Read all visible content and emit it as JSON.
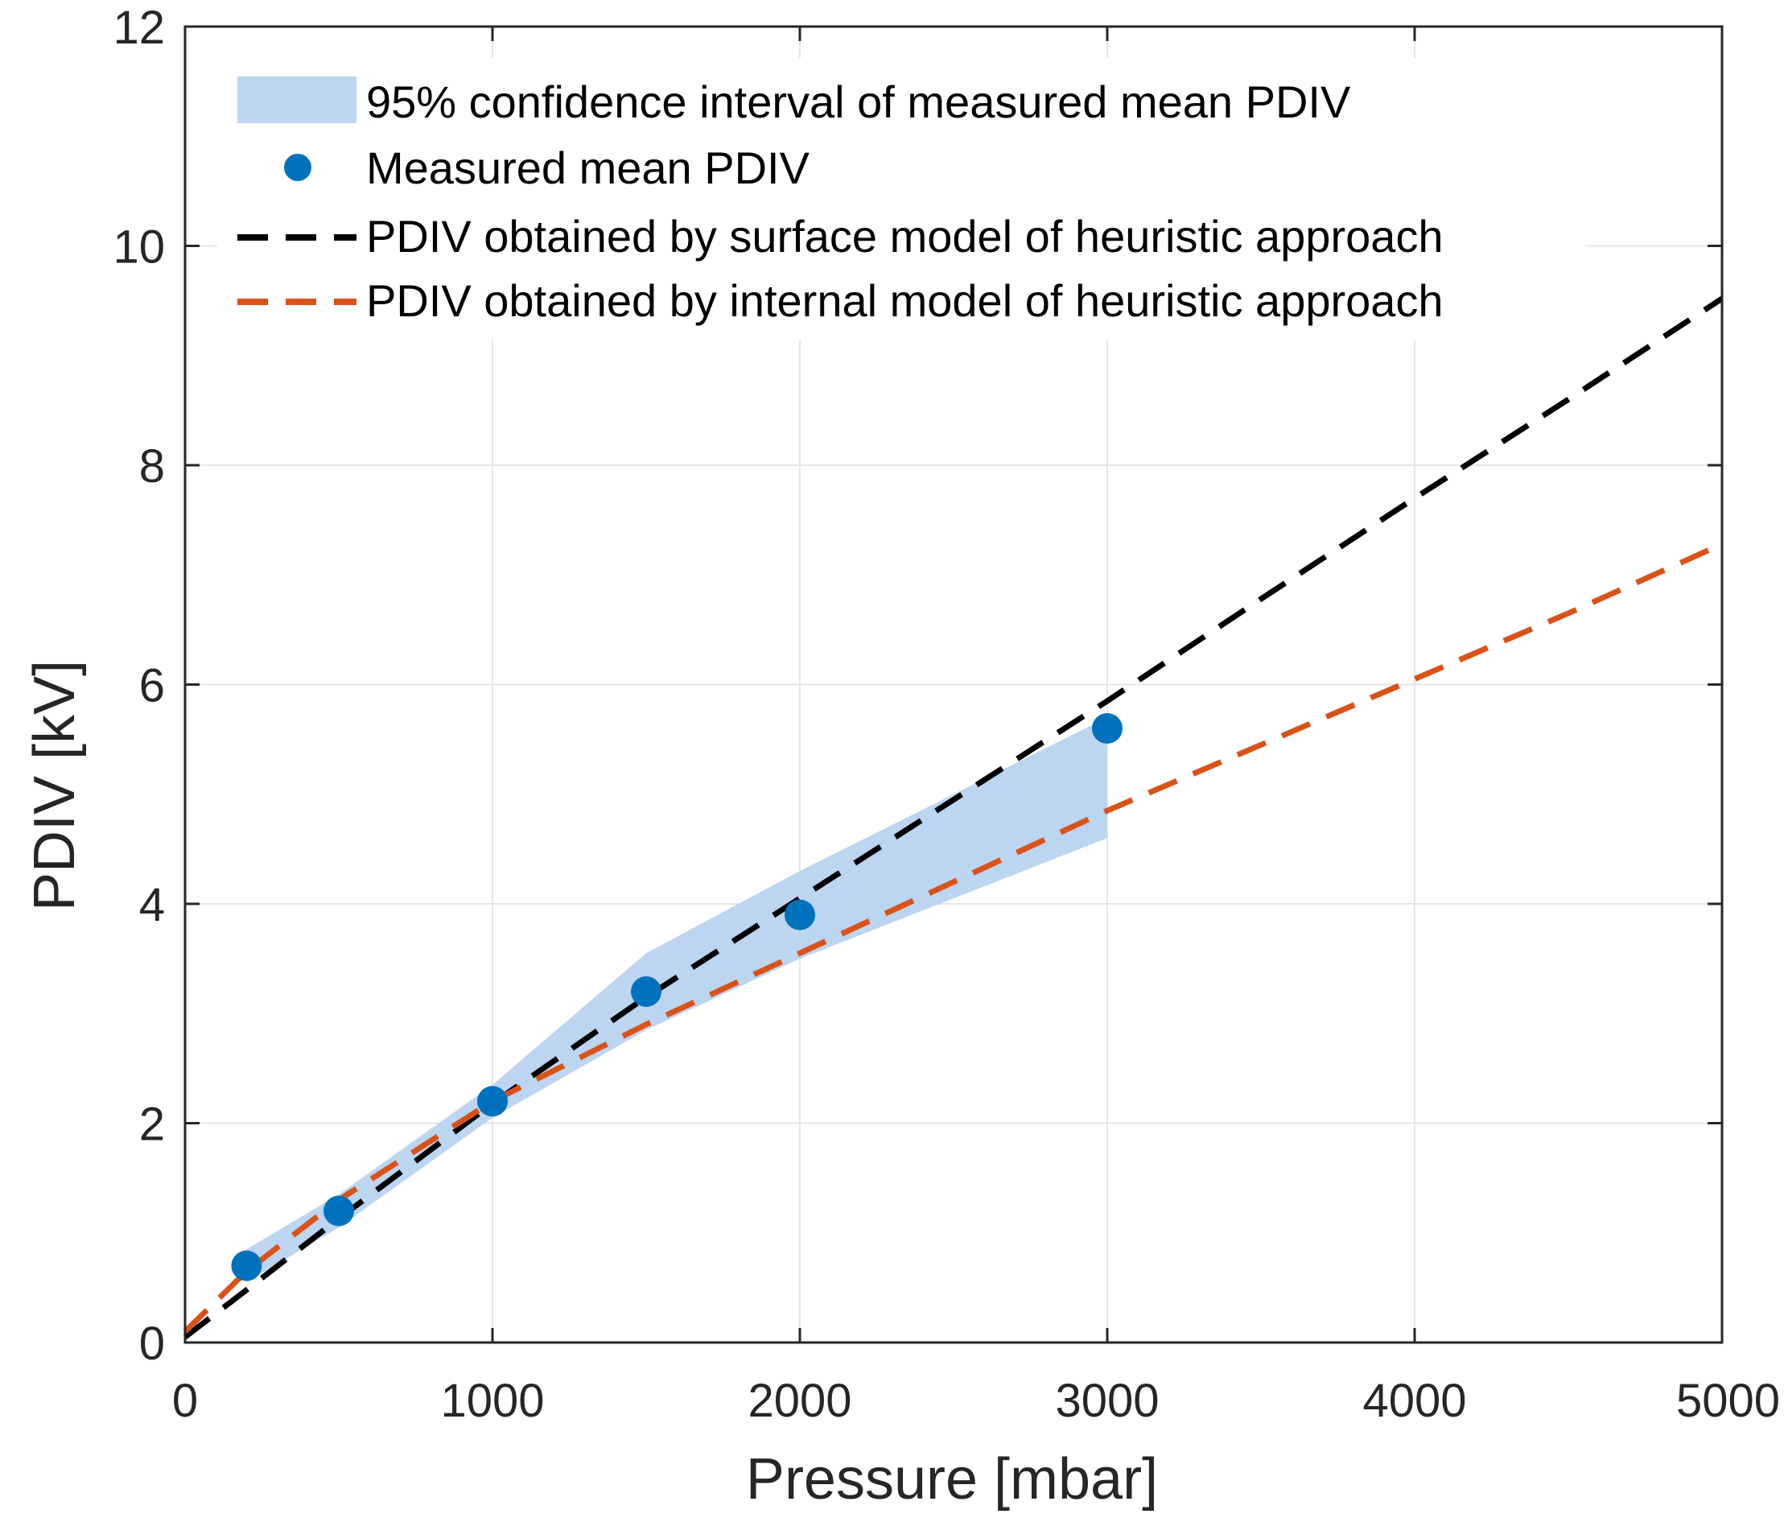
{
  "chart_data": {
    "type": "line",
    "title": "",
    "xlabel": "Pressure [mbar]",
    "ylabel": "PDIV [kV]",
    "xlim": [
      0,
      5000
    ],
    "ylim": [
      0,
      12
    ],
    "x_ticks": [
      0,
      1000,
      2000,
      3000,
      4000,
      5000
    ],
    "y_ticks": [
      0,
      2,
      4,
      6,
      8,
      10,
      12
    ],
    "grid": true,
    "legend_position": "top-left",
    "confidence_band": {
      "name": "95% confidence interval of measured mean PDIV",
      "color": "#bcd5f1",
      "x": [
        200,
        500,
        1000,
        1500,
        2000,
        3000
      ],
      "lower": [
        0.55,
        1.05,
        2.05,
        2.85,
        3.5,
        4.6
      ],
      "upper": [
        0.85,
        1.35,
        2.35,
        3.55,
        4.3,
        5.7
      ]
    },
    "series": [
      {
        "name": "Measured mean PDIV",
        "style": "markers",
        "color": "#0072bd",
        "x": [
          200,
          500,
          1000,
          1500,
          2000,
          3000
        ],
        "values": [
          0.7,
          1.2,
          2.2,
          3.2,
          3.9,
          5.6
        ]
      },
      {
        "name": "PDIV obtained by surface model of heuristic approach",
        "style": "dashed",
        "color": "#000000",
        "x": [
          0,
          200,
          500,
          1000,
          1500,
          2000,
          2500,
          3000,
          3500,
          4000,
          4500,
          5000
        ],
        "values": [
          0.05,
          0.48,
          1.13,
          2.18,
          3.15,
          4.05,
          4.95,
          5.85,
          6.78,
          7.7,
          8.6,
          9.52
        ]
      },
      {
        "name": "PDIV obtained by internal model of heuristic approach",
        "style": "dashed",
        "color": "#d95319",
        "x": [
          0,
          200,
          500,
          1000,
          1500,
          2000,
          2500,
          3000,
          3500,
          4000,
          4500,
          5000
        ],
        "values": [
          0.1,
          0.65,
          1.3,
          2.2,
          2.9,
          3.55,
          4.2,
          4.85,
          5.45,
          6.05,
          6.65,
          7.28
        ]
      }
    ]
  }
}
